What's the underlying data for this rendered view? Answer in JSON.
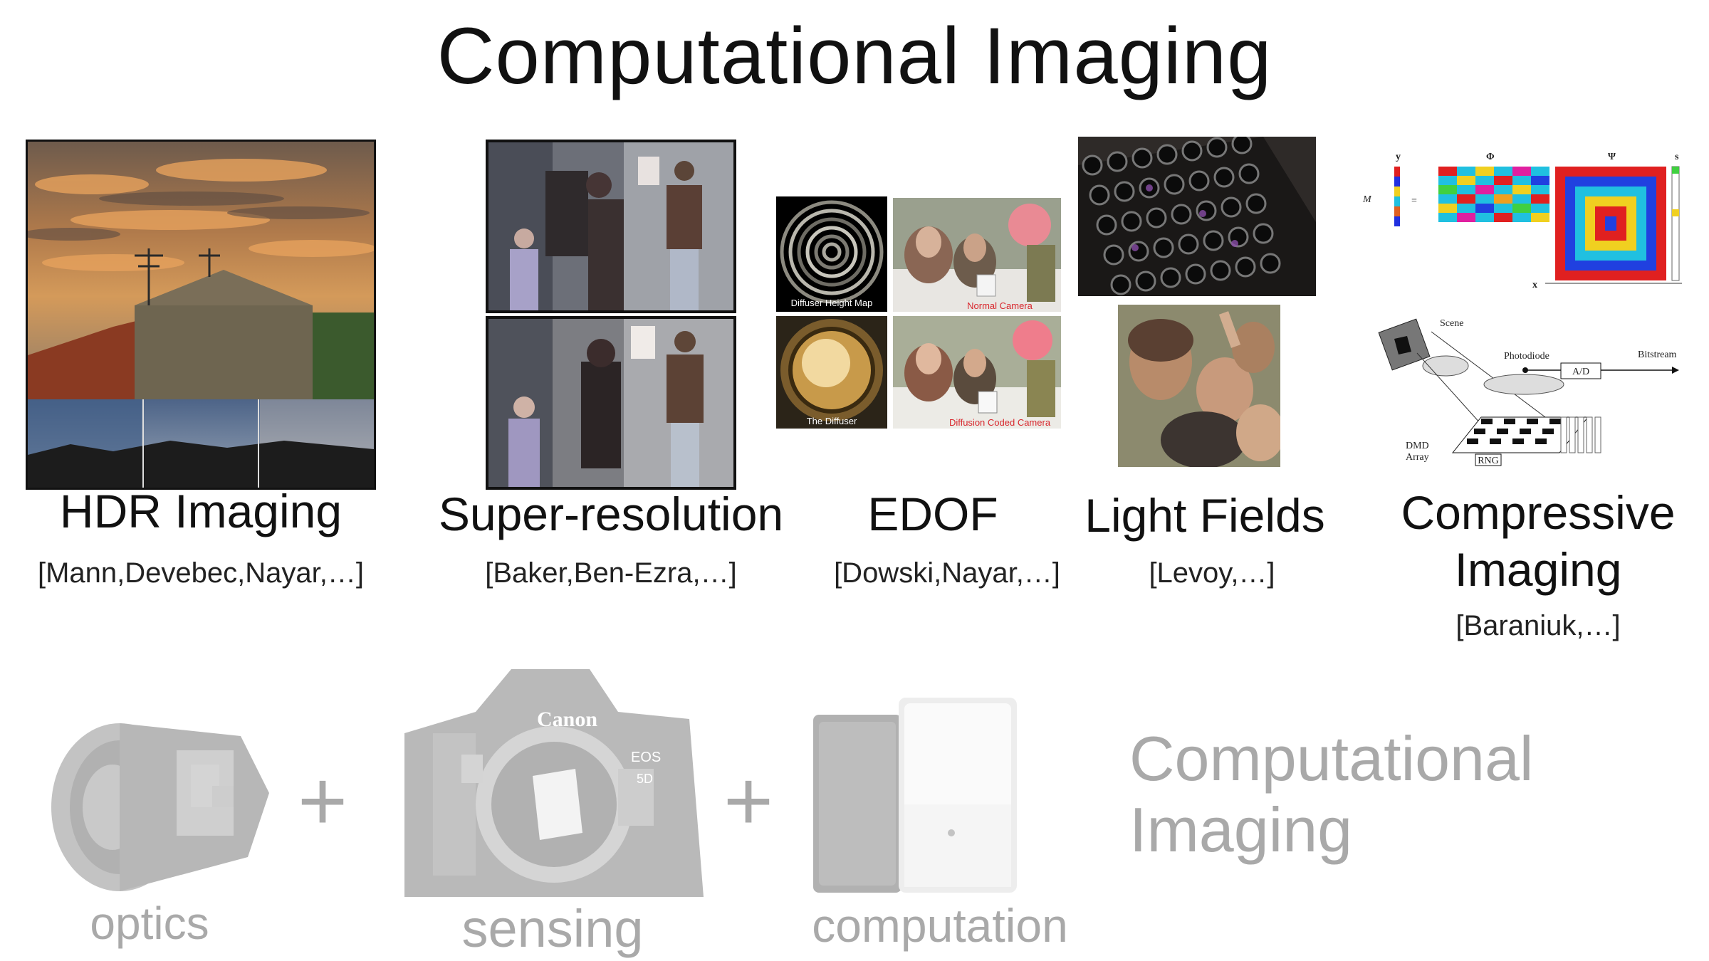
{
  "slide": {
    "title": "Computational Imaging"
  },
  "topics": [
    {
      "label": "HDR Imaging",
      "citation": "[Mann,Devebec,Nayar,…]"
    },
    {
      "label": "Super-resolution",
      "citation": "[Baker,Ben-Ezra,…]"
    },
    {
      "label": "EDOF",
      "citation": "[Dowski,Nayar,…]"
    },
    {
      "label": "Light Fields",
      "citation": "[Levoy,…]"
    },
    {
      "label_line1": "Compressive",
      "label_line2": "Imaging",
      "citation": "[Baraniuk,…]"
    }
  ],
  "edof_captions": {
    "diffuser_height_map": "Diffuser Height Map",
    "normal_camera": "Normal Camera",
    "the_diffuser": "The Diffuser",
    "diffusion_coded_camera": "Diffusion Coded Camera"
  },
  "compressive_figure": {
    "y": "y",
    "phi": "Φ",
    "psi": "Ψ",
    "s": "s",
    "m": "M",
    "eq": "=",
    "x": "x",
    "scene": "Scene",
    "photodiode": "Photodiode",
    "bitstream": "Bitstream",
    "ad": "A/D",
    "dmd": "DMD",
    "array": "Array",
    "rng": "RNG"
  },
  "bottom": {
    "brand": "Canon",
    "model": "EOS",
    "model_num": "5D",
    "plus": "+",
    "optics": "optics",
    "sensing": "sensing",
    "computation": "computation",
    "concept_line1": "Computational",
    "concept_line2": "Imaging"
  },
  "colors": {
    "text": "#111111",
    "faded_text": "#a9a9a9",
    "red_caption": "#d8262c"
  }
}
